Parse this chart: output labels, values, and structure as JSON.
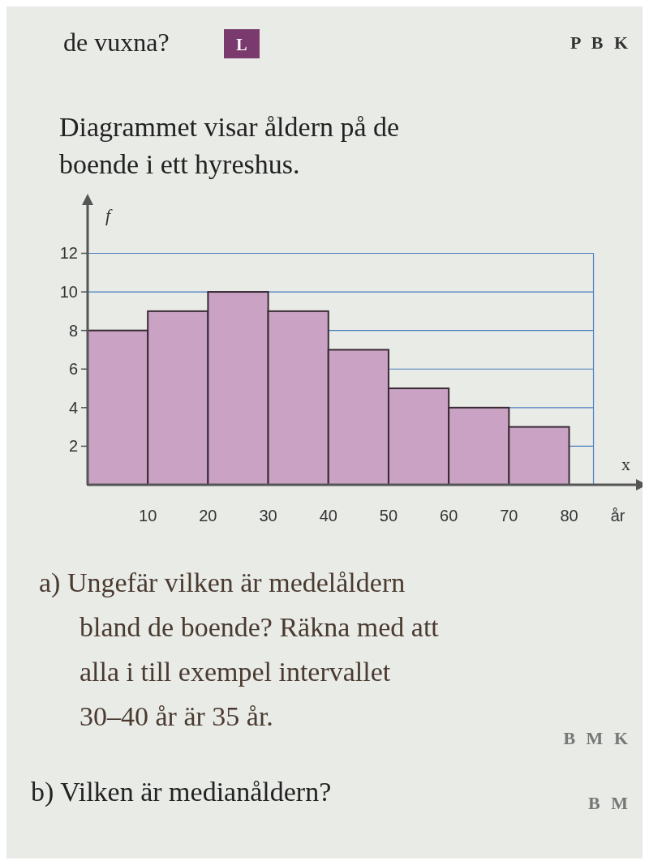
{
  "chart_data": {
    "type": "histogram",
    "title": "Diagrammet visar åldern på de boende i ett hyreshus.",
    "xlabel": "år",
    "ylabel": "f",
    "bins": [
      0,
      10,
      20,
      30,
      40,
      50,
      60,
      70,
      80
    ],
    "values": [
      8,
      9,
      10,
      9,
      7,
      5,
      4,
      3
    ],
    "color": "#c9a2c4",
    "xlim": [
      0,
      93
    ],
    "xticks": [
      10,
      20,
      30,
      40,
      50,
      60,
      70,
      80
    ],
    "ylim": [
      0,
      14.5
    ],
    "yticks": [
      2,
      4,
      6,
      8,
      10,
      12
    ],
    "grid": "y",
    "annotations": [
      "de vuxna?",
      "L",
      "P B K",
      "x",
      "a) Ungefär vilken är medelåldern bland de boende? Räkna med att alla i till exempel intervallet 30–40 år är 35 år.",
      "B M K",
      "b) Vilken är medianåldern?",
      "B M"
    ]
  }
}
